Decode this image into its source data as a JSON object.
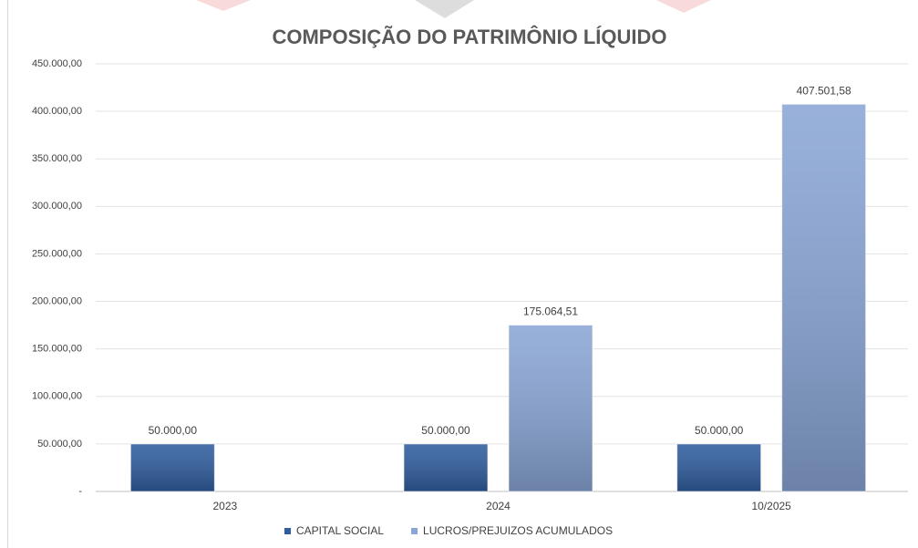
{
  "chart_data": {
    "type": "bar",
    "title": "COMPOSIÇÃO DO PATRIMÔNIO LÍQUIDO",
    "categories": [
      "2023",
      "2024",
      "10/2025"
    ],
    "series": [
      {
        "name": "CAPITAL SOCIAL",
        "color": "#2f5d9e",
        "values": [
          50000,
          50000,
          50000
        ],
        "value_labels": [
          "50.000,00",
          "50.000,00",
          "50.000,00"
        ]
      },
      {
        "name": "LUCROS/PREJUIZOS ACUMULADOS",
        "color": "#8aa6d6",
        "values": [
          null,
          175064.51,
          407501.58
        ],
        "value_labels": [
          null,
          "175.064,51",
          "407.501,58"
        ]
      }
    ],
    "ylim": [
      0,
      450000
    ],
    "yticks": [
      {
        "value": 0,
        "label": "-"
      },
      {
        "value": 50000,
        "label": "50.000,00"
      },
      {
        "value": 100000,
        "label": "100.000,00"
      },
      {
        "value": 150000,
        "label": "150.000,00"
      },
      {
        "value": 200000,
        "label": "200.000,00"
      },
      {
        "value": 250000,
        "label": "250.000,00"
      },
      {
        "value": 300000,
        "label": "300.000,00"
      },
      {
        "value": 350000,
        "label": "350.000,00"
      },
      {
        "value": 400000,
        "label": "400.000,00"
      },
      {
        "value": 450000,
        "label": "450.000,00"
      }
    ],
    "grid": true,
    "legend": "bottom"
  }
}
